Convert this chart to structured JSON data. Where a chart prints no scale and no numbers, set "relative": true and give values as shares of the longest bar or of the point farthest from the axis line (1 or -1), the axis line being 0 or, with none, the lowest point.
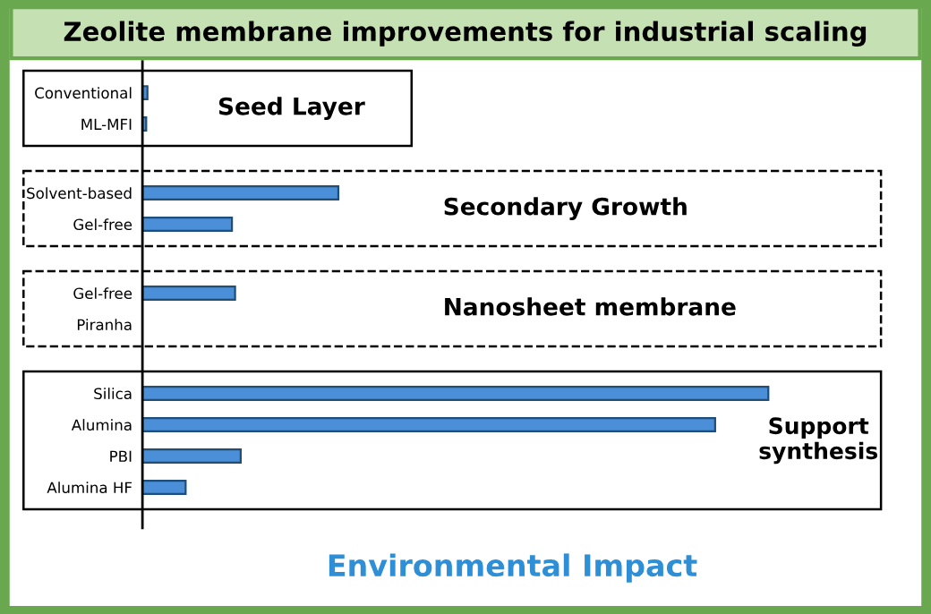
{
  "chart_data": {
    "type": "bar",
    "orientation": "horizontal",
    "relative": true,
    "title": "Zeolite membrane improvements for industrial scaling",
    "xlabel": "Environmental Impact",
    "categories": [
      "Conventional",
      "ML-MFI",
      "Solvent-based",
      "Gel-free",
      "Gel-free",
      "Piranha",
      "Silica",
      "Alumina",
      "PBI",
      "Alumina HF"
    ],
    "values": [
      0.008,
      0.006,
      0.313,
      0.143,
      0.148,
      null,
      1,
      0.915,
      0.157,
      0.069
    ],
    "color": "#4a8fd8",
    "annotations": [
      "Seed Layer",
      "Secondary Growth",
      "Nanosheet membrane",
      "Support\nsynthesis"
    ],
    "grid": false,
    "legend": false
  }
}
